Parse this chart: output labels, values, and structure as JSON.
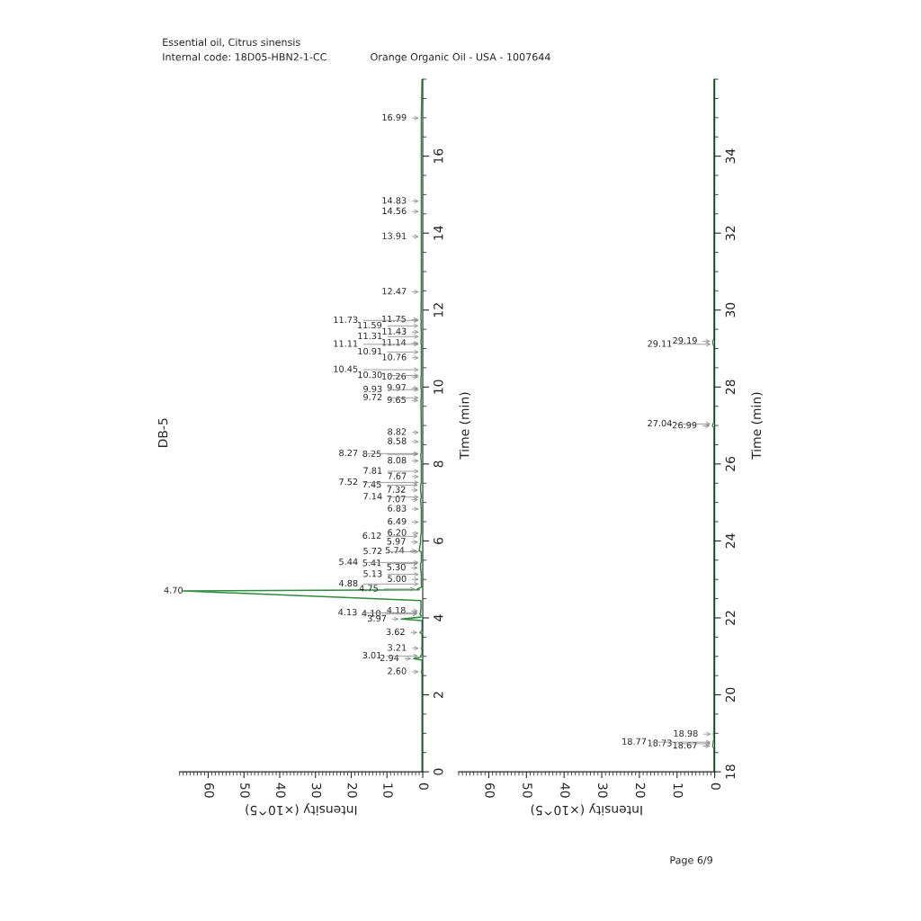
{
  "chart_data": [
    {
      "type": "line",
      "orientation": "horizontal",
      "title": "Essential oil, Citrus sinensis",
      "subtitle": "DB-5",
      "xlabel": "Intensity (×10^5)",
      "ylabel": "Time (min)",
      "xlim": [
        68,
        0
      ],
      "xticks": [
        0,
        10,
        20,
        30,
        40,
        50,
        60
      ],
      "ylim": [
        0,
        18
      ],
      "yticks": [
        0,
        2,
        4,
        6,
        8,
        10,
        12,
        14,
        16
      ],
      "series": [
        {
          "color": "#2e8b3e",
          "x": [
            0.0,
            2.55,
            2.6,
            2.65,
            2.9,
            2.94,
            2.98,
            3.01,
            3.05,
            3.18,
            3.21,
            3.25,
            3.58,
            3.62,
            3.66,
            3.93,
            3.97,
            4.02,
            4.08,
            4.1,
            4.13,
            4.18,
            4.22,
            4.45,
            4.7,
            4.73,
            4.75,
            4.8,
            4.88,
            5.0,
            5.13,
            5.3,
            5.41,
            5.44,
            5.72,
            5.74,
            5.97,
            6.12,
            6.2,
            6.49,
            6.83,
            7.07,
            7.14,
            7.32,
            7.45,
            7.52,
            7.67,
            7.81,
            8.08,
            8.25,
            8.27,
            8.58,
            8.82,
            9.65,
            9.72,
            9.93,
            9.97,
            10.26,
            10.3,
            10.45,
            10.76,
            10.91,
            11.11,
            11.14,
            11.31,
            11.43,
            11.59,
            11.73,
            11.75,
            12.47,
            13.91,
            14.56,
            14.83,
            16.99,
            18.0
          ],
          "values": [
            0.2,
            0.2,
            0.4,
            0.2,
            0.2,
            2.5,
            0.5,
            0.6,
            0.2,
            0.2,
            0.4,
            0.2,
            0.2,
            0.8,
            0.2,
            0.2,
            6,
            0.5,
            0.5,
            0.8,
            0.6,
            0.6,
            0.5,
            0.5,
            67,
            1,
            1.5,
            0.3,
            0.4,
            0.4,
            0.4,
            0.6,
            0.6,
            0.4,
            0.4,
            1,
            0.6,
            0.6,
            0.4,
            0.4,
            0.4,
            0.6,
            0.4,
            0.6,
            0.6,
            0.4,
            0.4,
            0.4,
            0.4,
            0.6,
            0.4,
            0.4,
            0.4,
            0.5,
            0.4,
            0.4,
            0.5,
            0.5,
            0.4,
            0.4,
            0.4,
            0.4,
            0.4,
            0.5,
            0.4,
            0.4,
            0.5,
            0.4,
            0.5,
            0.4,
            0.4,
            0.4,
            0.4,
            0.4,
            0.2
          ]
        }
      ],
      "annotations": [
        "Internal code: 18D05-HBN2-1-CC",
        "Orange Organic Oil - USA - 1007644",
        "Page 6/9",
        {
          "text": "2.60",
          "y": 2.6,
          "x": 0.4
        },
        {
          "text": "2.94",
          "y": 2.94,
          "x": 2.5
        },
        {
          "text": "3.01",
          "y": 3.01,
          "x": 0.6
        },
        {
          "text": "3.21",
          "y": 3.21,
          "x": 0.4
        },
        {
          "text": "3.62",
          "y": 3.62,
          "x": 0.8
        },
        {
          "text": "3.97",
          "y": 3.97,
          "x": 6
        },
        {
          "text": "4.10",
          "y": 4.1,
          "x": 0.8
        },
        {
          "text": "4.18",
          "y": 4.18,
          "x": 0.6
        },
        {
          "text": "4.13",
          "y": 4.13,
          "x": 0.6
        },
        {
          "text": "4.70",
          "y": 4.7,
          "x": 67
        },
        {
          "text": "4.75",
          "y": 4.75,
          "x": 1.5
        },
        {
          "text": "4.88",
          "y": 4.88,
          "x": 0.4
        },
        {
          "text": "5.00",
          "y": 5.0,
          "x": 0.4
        },
        {
          "text": "5.13",
          "y": 5.13,
          "x": 0.4
        },
        {
          "text": "5.30",
          "y": 5.3,
          "x": 0.6
        },
        {
          "text": "5.41",
          "y": 5.41,
          "x": 0.6
        },
        {
          "text": "5.44",
          "y": 5.44,
          "x": 0.4
        },
        {
          "text": "5.74",
          "y": 5.74,
          "x": 1
        },
        {
          "text": "5.72",
          "y": 5.72,
          "x": 0.4
        },
        {
          "text": "5.97",
          "y": 5.97,
          "x": 0.6
        },
        {
          "text": "6.12",
          "y": 6.12,
          "x": 0.6
        },
        {
          "text": "6.20",
          "y": 6.2,
          "x": 0.4
        },
        {
          "text": "6.49",
          "y": 6.49,
          "x": 0.4
        },
        {
          "text": "6.83",
          "y": 6.83,
          "x": 0.4
        },
        {
          "text": "7.07",
          "y": 7.07,
          "x": 0.6
        },
        {
          "text": "7.14",
          "y": 7.14,
          "x": 0.4
        },
        {
          "text": "7.32",
          "y": 7.32,
          "x": 0.6
        },
        {
          "text": "7.45",
          "y": 7.45,
          "x": 0.6
        },
        {
          "text": "7.52",
          "y": 7.52,
          "x": 0.4
        },
        {
          "text": "7.67",
          "y": 7.67,
          "x": 0.4
        },
        {
          "text": "7.81",
          "y": 7.81,
          "x": 0.4
        },
        {
          "text": "8.08",
          "y": 8.08,
          "x": 0.4
        },
        {
          "text": "8.25",
          "y": 8.25,
          "x": 0.6
        },
        {
          "text": "8.27",
          "y": 8.27,
          "x": 0.4
        },
        {
          "text": "8.58",
          "y": 8.58,
          "x": 0.4
        },
        {
          "text": "8.82",
          "y": 8.82,
          "x": 0.4
        },
        {
          "text": "9.65",
          "y": 9.65,
          "x": 0.5
        },
        {
          "text": "9.72",
          "y": 9.72,
          "x": 0.4
        },
        {
          "text": "9.97",
          "y": 9.97,
          "x": 0.5
        },
        {
          "text": "9.93",
          "y": 9.93,
          "x": 0.4
        },
        {
          "text": "10.26",
          "y": 10.26,
          "x": 0.5
        },
        {
          "text": "10.30",
          "y": 10.3,
          "x": 0.4
        },
        {
          "text": "10.45",
          "y": 10.45,
          "x": 0.4
        },
        {
          "text": "10.76",
          "y": 10.76,
          "x": 0.4
        },
        {
          "text": "10.91",
          "y": 10.91,
          "x": 0.4
        },
        {
          "text": "11.14",
          "y": 11.14,
          "x": 0.5
        },
        {
          "text": "11.11",
          "y": 11.11,
          "x": 0.4
        },
        {
          "text": "11.31",
          "y": 11.31,
          "x": 0.4
        },
        {
          "text": "11.43",
          "y": 11.43,
          "x": 0.4
        },
        {
          "text": "11.59",
          "y": 11.59,
          "x": 0.5
        },
        {
          "text": "11.75",
          "y": 11.75,
          "x": 0.5
        },
        {
          "text": "11.73",
          "y": 11.73,
          "x": 0.4
        },
        {
          "text": "12.47",
          "y": 12.47,
          "x": 0.4
        },
        {
          "text": "13.91",
          "y": 13.91,
          "x": 0.4
        },
        {
          "text": "14.56",
          "y": 14.56,
          "x": 0.4
        },
        {
          "text": "14.83",
          "y": 14.83,
          "x": 0.4
        },
        {
          "text": "16.99",
          "y": 16.99,
          "x": 0.4
        }
      ]
    },
    {
      "type": "line",
      "orientation": "horizontal",
      "xlabel": "Intensity (×10^5)",
      "ylabel": "Time (min)",
      "xlim": [
        68,
        0
      ],
      "xticks": [
        0,
        10,
        20,
        30,
        40,
        50,
        60
      ],
      "ylim": [
        18,
        36
      ],
      "yticks": [
        18,
        20,
        22,
        24,
        26,
        28,
        30,
        32,
        34
      ],
      "series": [
        {
          "color": "#2e8b3e",
          "x": [
            18.0,
            18.6,
            18.67,
            18.73,
            18.77,
            18.85,
            18.98,
            19.1,
            26.95,
            26.99,
            27.04,
            27.1,
            29.05,
            29.11,
            29.19,
            29.25,
            36.0
          ],
          "values": [
            0.2,
            0.2,
            0.5,
            0.4,
            0.4,
            0.2,
            0.3,
            0.2,
            0.2,
            0.6,
            0.4,
            0.2,
            0.2,
            0.4,
            0.5,
            0.2,
            0.2
          ]
        }
      ],
      "annotations": [
        {
          "text": "18.67",
          "y": 18.67,
          "x": 0.5
        },
        {
          "text": "18.73",
          "y": 18.73,
          "x": 0.4
        },
        {
          "text": "18.77",
          "y": 18.77,
          "x": 0.4
        },
        {
          "text": "18.98",
          "y": 18.98,
          "x": 0.3
        },
        {
          "text": "26.99",
          "y": 26.99,
          "x": 0.6
        },
        {
          "text": "27.04",
          "y": 27.04,
          "x": 0.4
        },
        {
          "text": "29.19",
          "y": 29.19,
          "x": 0.5
        },
        {
          "text": "29.11",
          "y": 29.11,
          "x": 0.4
        }
      ]
    }
  ]
}
